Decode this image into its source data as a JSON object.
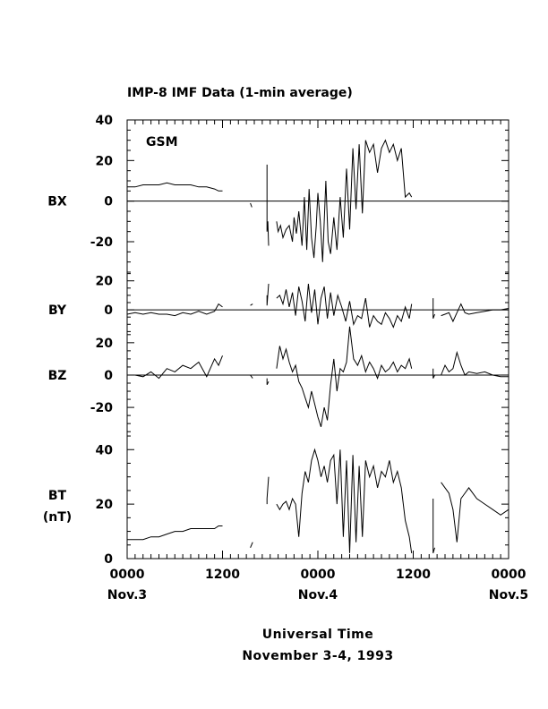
{
  "chart_data": {
    "type": "line",
    "title": "IMP-8 IMF Data (1-min average)",
    "coordinate_system": "GSM",
    "xlabel": "Universal Time",
    "xlabel_2": "November 3-4, 1993",
    "x_units": "hours from 0000 UT Nov.3",
    "xlim": [
      0,
      48
    ],
    "x_ticks": [
      {
        "value": 0,
        "label": "0000",
        "date": "Nov.3"
      },
      {
        "value": 12,
        "label": "1200",
        "date": ""
      },
      {
        "value": 24,
        "label": "0000",
        "date": "Nov.4"
      },
      {
        "value": 36,
        "label": "1200",
        "date": ""
      },
      {
        "value": 48,
        "label": "0000",
        "date": "Nov.5"
      }
    ],
    "panels": [
      {
        "name": "BX",
        "unit": "",
        "ylim": [
          -35,
          40
        ],
        "yticks": [
          -20,
          0,
          20,
          40
        ],
        "zero_line": true,
        "annotation": "GSM",
        "segments": [
          {
            "x": [
              0,
              1,
              2,
              3,
              4,
              5,
              6,
              7,
              8,
              9,
              10,
              11,
              11.5,
              12
            ],
            "y": [
              7,
              7,
              8,
              8,
              8,
              9,
              8,
              8,
              8,
              7,
              7,
              6,
              5,
              5
            ]
          },
          {
            "x": [
              15.5,
              15.7
            ],
            "y": [
              -1,
              -3
            ]
          },
          {
            "x": [
              17.6,
              17.6,
              17.7,
              17.8
            ],
            "y": [
              18,
              -15,
              -10,
              -22
            ]
          },
          {
            "x": [
              18.8,
              19,
              19.3,
              19.6,
              20,
              20.4,
              20.8,
              21,
              21.3,
              21.6,
              22,
              22.3,
              22.6,
              22.9,
              23.2,
              23.5,
              23.8,
              24,
              24.3,
              24.6,
              25,
              25.3,
              25.6,
              26,
              26.4,
              26.8,
              27.2,
              27.6,
              28,
              28.4,
              28.8,
              29.2,
              29.6,
              30,
              30.5,
              31,
              31.5,
              32,
              32.5,
              33,
              33.5,
              34,
              34.5,
              35,
              35.5,
              35.8
            ],
            "y": [
              -10,
              -15,
              -12,
              -18,
              -14,
              -12,
              -20,
              -8,
              -16,
              -5,
              -22,
              2,
              -24,
              6,
              -18,
              -28,
              -12,
              4,
              -10,
              -30,
              10,
              -20,
              -26,
              -8,
              -24,
              2,
              -18,
              16,
              -14,
              26,
              -4,
              28,
              -6,
              30,
              24,
              28,
              14,
              26,
              30,
              24,
              28,
              20,
              26,
              2,
              4,
              2
            ]
          }
        ]
      },
      {
        "name": "BY",
        "unit": "",
        "ylim": [
          -16,
          26
        ],
        "yticks": [
          0,
          20
        ],
        "zero_line": true,
        "segments": [
          {
            "x": [
              0,
              1,
              2,
              3,
              4,
              5,
              6,
              7,
              8,
              9,
              10,
              11,
              11.5,
              12
            ],
            "y": [
              -3,
              -2,
              -3,
              -2,
              -3,
              -3,
              -4,
              -2,
              -3,
              -1,
              -3,
              -1,
              4,
              2
            ]
          },
          {
            "x": [
              15.5,
              15.8
            ],
            "y": [
              3,
              4
            ]
          },
          {
            "x": [
              17.6,
              17.6,
              17.8
            ],
            "y": [
              10,
              3,
              18
            ]
          },
          {
            "x": [
              18.8,
              19.2,
              19.6,
              20,
              20.4,
              20.8,
              21.2,
              21.6,
              22,
              22.4,
              22.8,
              23.2,
              23.6,
              24,
              24.4,
              24.8,
              25.2,
              25.6,
              26,
              26.5,
              27,
              27.5,
              28,
              28.5,
              29,
              29.5,
              30,
              30.5,
              31,
              31.5,
              32,
              32.5,
              33,
              33.5,
              34,
              34.5,
              35,
              35.5,
              35.8
            ],
            "y": [
              8,
              10,
              4,
              14,
              2,
              12,
              -4,
              16,
              6,
              -8,
              18,
              -2,
              14,
              -10,
              8,
              16,
              -6,
              12,
              -4,
              10,
              2,
              -8,
              6,
              -10,
              -4,
              -6,
              8,
              -12,
              -4,
              -8,
              -10,
              -2,
              -6,
              -12,
              -4,
              -8,
              2,
              -6,
              4
            ]
          },
          {
            "x": [
              38.5,
              38.5,
              38.7
            ],
            "y": [
              8,
              -6,
              -3
            ]
          },
          {
            "x": [
              39.5,
              40,
              40.5,
              41,
              41.5,
              42,
              42.5,
              43,
              44,
              45,
              46,
              47,
              48
            ],
            "y": [
              -4,
              -3,
              -2,
              -8,
              -2,
              4,
              -2,
              -3,
              -2,
              -1,
              0,
              0,
              1
            ]
          }
        ]
      },
      {
        "name": "BZ",
        "unit": "",
        "ylim": [
          -36,
          26
        ],
        "yticks": [
          -20,
          0,
          20
        ],
        "zero_line": true,
        "segments": [
          {
            "x": [
              0,
              1,
              2,
              3,
              4,
              5,
              6,
              7,
              8,
              9,
              10,
              11,
              11.5,
              12
            ],
            "y": [
              0,
              0,
              -1,
              2,
              -2,
              4,
              2,
              6,
              4,
              8,
              -1,
              10,
              6,
              12
            ]
          },
          {
            "x": [
              15.5,
              15.8
            ],
            "y": [
              0,
              -2
            ]
          },
          {
            "x": [
              17.6,
              17.6,
              17.8
            ],
            "y": [
              -2,
              -6,
              -4
            ]
          },
          {
            "x": [
              18.8,
              19.2,
              19.6,
              20,
              20.4,
              20.8,
              21.2,
              21.6,
              22,
              22.4,
              22.8,
              23.2,
              23.6,
              24,
              24.4,
              24.8,
              25.2,
              25.6,
              26,
              26.4,
              26.8,
              27.2,
              27.6,
              28,
              28.5,
              29,
              29.5,
              30,
              30.5,
              31,
              31.5,
              32,
              32.5,
              33,
              33.5,
              34,
              34.5,
              35,
              35.5,
              35.8
            ],
            "y": [
              4,
              18,
              10,
              16,
              8,
              2,
              6,
              -4,
              -8,
              -14,
              -20,
              -10,
              -18,
              -26,
              -32,
              -20,
              -28,
              -6,
              10,
              -10,
              4,
              2,
              8,
              30,
              10,
              6,
              12,
              2,
              8,
              4,
              -2,
              6,
              2,
              4,
              8,
              2,
              6,
              4,
              10,
              4
            ]
          },
          {
            "x": [
              38.5,
              38.5,
              38.7
            ],
            "y": [
              4,
              -2,
              0
            ]
          },
          {
            "x": [
              39.5,
              40,
              40.5,
              41,
              41.5,
              42,
              42.5,
              43,
              44,
              45,
              46,
              47,
              48
            ],
            "y": [
              0,
              6,
              2,
              4,
              14,
              6,
              0,
              2,
              1,
              2,
              0,
              -1,
              -1
            ]
          }
        ]
      },
      {
        "name": "BT",
        "unit": "(nT)",
        "ylim": [
          0,
          46
        ],
        "yticks": [
          0,
          20,
          40
        ],
        "zero_line": false,
        "segments": [
          {
            "x": [
              0,
              1,
              2,
              3,
              4,
              5,
              6,
              7,
              8,
              9,
              10,
              11,
              11.5,
              12
            ],
            "y": [
              7,
              7,
              7,
              8,
              8,
              9,
              10,
              10,
              11,
              11,
              11,
              11,
              12,
              12
            ]
          },
          {
            "x": [
              15.5,
              15.8
            ],
            "y": [
              4,
              6
            ]
          },
          {
            "x": [
              17.6,
              17.6,
              17.8
            ],
            "y": [
              20,
              22,
              30
            ]
          },
          {
            "x": [
              18.8,
              19.2,
              19.6,
              20,
              20.4,
              20.8,
              21.2,
              21.6,
              22,
              22.4,
              22.8,
              23.2,
              23.6,
              24,
              24.4,
              24.8,
              25.2,
              25.6,
              26,
              26.4,
              26.8,
              27.2,
              27.6,
              28,
              28.4,
              28.8,
              29.2,
              29.6,
              30,
              30.5,
              31,
              31.5,
              32,
              32.5,
              33,
              33.5,
              34,
              34.5,
              35,
              35.5,
              35.8
            ],
            "y": [
              20,
              18,
              20,
              21,
              18,
              22,
              20,
              8,
              24,
              32,
              28,
              36,
              40,
              36,
              30,
              34,
              28,
              36,
              38,
              20,
              40,
              8,
              36,
              2,
              38,
              6,
              34,
              8,
              36,
              30,
              34,
              26,
              32,
              30,
              36,
              28,
              32,
              26,
              14,
              8,
              2
            ]
          },
          {
            "x": [
              38.5,
              38.5,
              38.7
            ],
            "y": [
              22,
              2,
              4
            ]
          },
          {
            "x": [
              39.5,
              40,
              40.5,
              41,
              41.5,
              42,
              42.5,
              43,
              44,
              45,
              46,
              47,
              48
            ],
            "y": [
              28,
              26,
              24,
              18,
              6,
              22,
              24,
              26,
              22,
              20,
              18,
              16,
              18
            ]
          }
        ]
      }
    ]
  }
}
